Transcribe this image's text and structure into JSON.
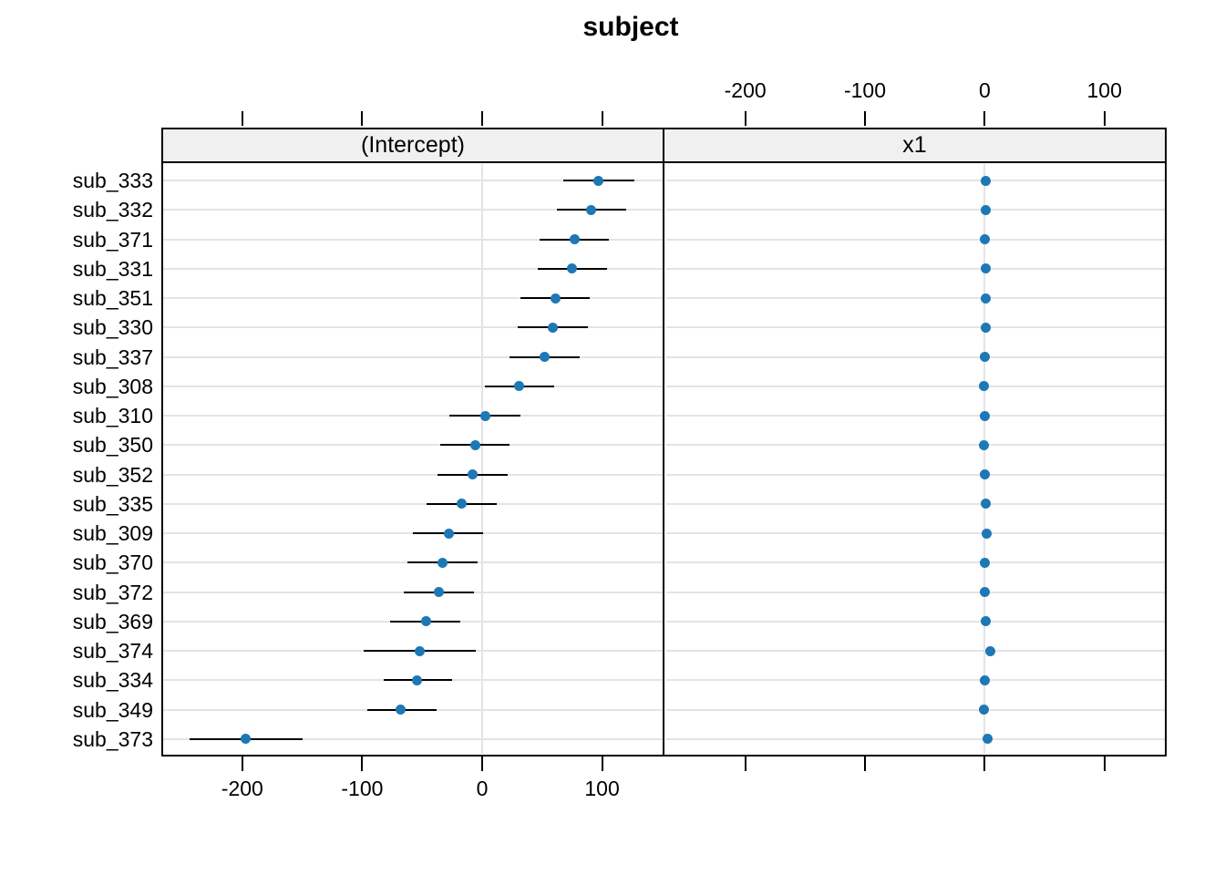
{
  "title": "subject",
  "chart_data": {
    "type": "dotplot",
    "title": "subject",
    "panels": [
      {
        "label": "(Intercept)"
      },
      {
        "label": "x1"
      }
    ],
    "categories": [
      "sub_333",
      "sub_332",
      "sub_371",
      "sub_331",
      "sub_351",
      "sub_330",
      "sub_337",
      "sub_308",
      "sub_310",
      "sub_350",
      "sub_352",
      "sub_335",
      "sub_309",
      "sub_370",
      "sub_372",
      "sub_369",
      "sub_374",
      "sub_334",
      "sub_349",
      "sub_373"
    ],
    "series": [
      {
        "name": "(Intercept)",
        "values": [
          97,
          91,
          77,
          75,
          61,
          59,
          52,
          31,
          3,
          -6,
          -8,
          -17,
          -28,
          -33,
          -36,
          -47,
          -52,
          -54,
          -68,
          -197
        ],
        "ci_low": [
          68,
          62,
          48,
          46,
          32,
          30,
          23,
          2,
          -27,
          -35,
          -37,
          -46,
          -58,
          -62,
          -65,
          -77,
          -99,
          -82,
          -96,
          -244
        ],
        "ci_high": [
          127,
          120,
          106,
          104,
          90,
          88,
          81,
          60,
          32,
          23,
          21,
          12,
          1,
          -4,
          -7,
          -18,
          -5,
          -25,
          -38,
          -150
        ]
      },
      {
        "name": "x1",
        "values": [
          0.5,
          0.5,
          0,
          1,
          0.5,
          1,
          0,
          -1,
          0,
          -0.5,
          0,
          0.5,
          1.5,
          0,
          0,
          0.5,
          5,
          0,
          -0.5,
          2.5
        ],
        "ci_low": [
          0.5,
          0.5,
          0,
          1,
          0.5,
          1,
          0,
          -1,
          0,
          -0.5,
          0,
          0.5,
          1.5,
          0,
          0,
          0.5,
          5,
          0,
          -0.5,
          2.5
        ],
        "ci_high": [
          0.5,
          0.5,
          0,
          1,
          0.5,
          1,
          0,
          -1,
          0,
          -0.5,
          0,
          0.5,
          1.5,
          0,
          0,
          0.5,
          5,
          0,
          -0.5,
          2.5
        ]
      }
    ],
    "x_ticks": [
      -200,
      -100,
      0,
      100
    ],
    "x_tick_labels": [
      "-200",
      "-100",
      "0",
      "100"
    ],
    "xlim": [
      -267.5,
      152
    ],
    "reference_line_x": 0,
    "grid": "horizontal-per-row",
    "legend": "none",
    "colors": {
      "point": "#1d78b5",
      "whisker": "#000000",
      "gridline": "#e4e4e4",
      "strip_background": "#f0f0f0",
      "border": "#000000",
      "background": "#ffffff",
      "text": "#000000"
    }
  }
}
